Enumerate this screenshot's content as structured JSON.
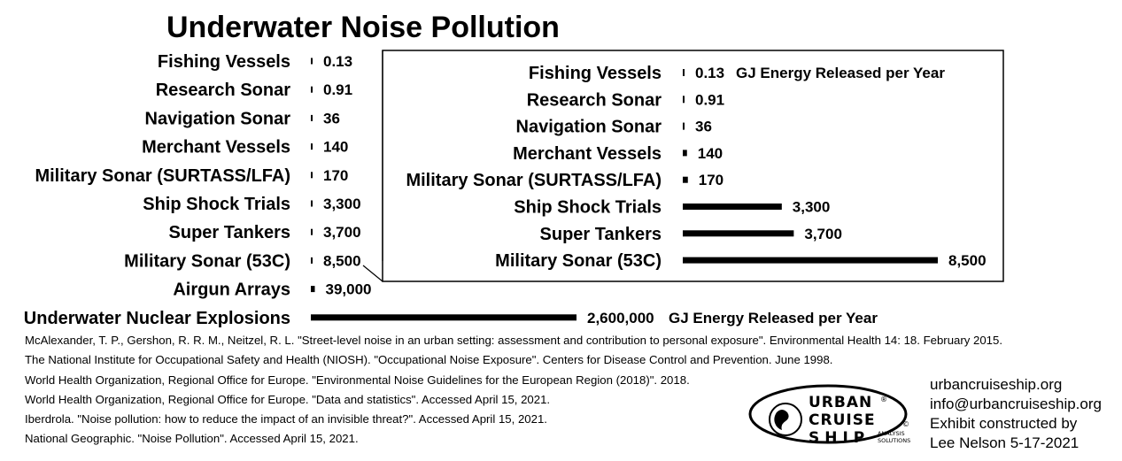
{
  "chart_data": [
    {
      "type": "bar",
      "orientation": "horizontal",
      "title": "Underwater Noise Pollution",
      "unit_label": "GJ Energy Released per Year",
      "categories": [
        "Fishing Vessels",
        "Research Sonar",
        "Navigation Sonar",
        "Merchant Vessels",
        "Military Sonar (SURTASS/LFA)",
        "Ship Shock Trials",
        "Super Tankers",
        "Military Sonar (53C)",
        "Airgun Arrays",
        "Underwater Nuclear Explosions"
      ],
      "values": [
        0.13,
        0.91,
        36,
        140,
        170,
        3300,
        3700,
        8500,
        39000,
        2600000
      ],
      "value_labels": [
        "0.13",
        "0.91",
        "36",
        "140",
        "170",
        "3,300",
        "3,700",
        "8,500",
        "39,000",
        "2,600,000"
      ],
      "xlim": [
        0,
        2600000
      ]
    },
    {
      "type": "bar",
      "orientation": "horizontal",
      "unit_label": "GJ Energy Released per Year",
      "categories": [
        "Fishing Vessels",
        "Research Sonar",
        "Navigation Sonar",
        "Merchant Vessels",
        "Military Sonar (SURTASS/LFA)",
        "Ship Shock Trials",
        "Super Tankers",
        "Military Sonar (53C)"
      ],
      "values": [
        0.13,
        0.91,
        36,
        140,
        170,
        3300,
        3700,
        8500
      ],
      "value_labels": [
        "0.13",
        "0.91",
        "36",
        "140",
        "170",
        "3,300",
        "3,700",
        "8,500"
      ],
      "xlim": [
        0,
        8500
      ]
    }
  ],
  "references": [
    "McAlexander, T. P., Gershon, R. R. M., Neitzel, R. L. \"Street-level noise in an urban setting: assessment and contribution to personal exposure\". Environmental Health 14: 18. February 2015.",
    "The National Institute for Occupational Safety and Health (NIOSH). \"Occupational Noise Exposure\". Centers for Disease Control and Prevention. June 1998.",
    "World Health Organization, Regional Office for Europe. \"Environmental Noise Guidelines for the European Region (2018)\". 2018.",
    "World Health Organization, Regional Office for Europe. \"Data and statistics\". Accessed April 15, 2021.",
    "Iberdrola. \"Noise pollution: how to reduce the impact of an invisible threat?\". Accessed April 15, 2021.",
    "National Geographic. \"Noise Pollution\". Accessed April 15, 2021."
  ],
  "contact": {
    "website": "urbancruiseship.org",
    "email": "info@urbancruiseship.org",
    "line3": "Exhibit constructed by",
    "line4": "Lee Nelson 5-17-2021"
  },
  "logo": {
    "word1": "URBAN",
    "word2": "CRUISE",
    "word3": "SHIP",
    "sub1": "ANALYSIS",
    "sub2": "SOLUTIONS",
    "reg": "®",
    "copy": "©"
  }
}
